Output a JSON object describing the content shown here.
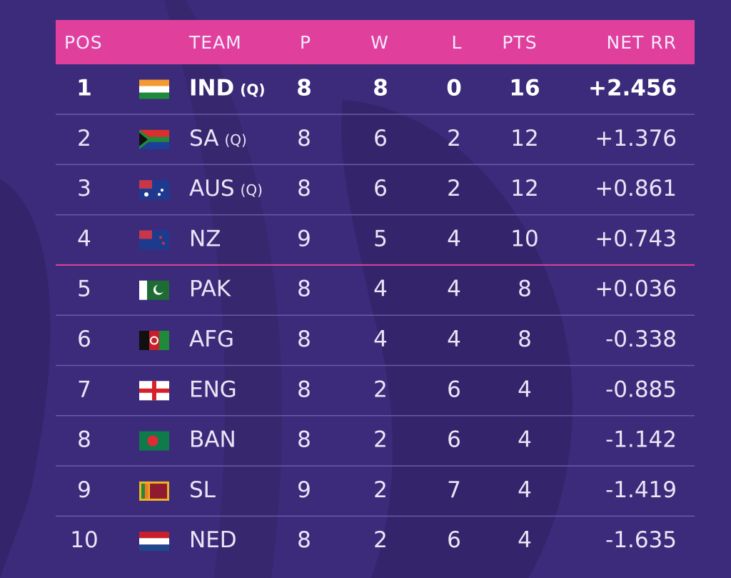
{
  "table": {
    "header": [
      "POS",
      "TEAM",
      "P",
      "W",
      "L",
      "PTS",
      "NET RR"
    ],
    "rows": [
      {
        "pos": "1",
        "team": "IND",
        "q": "(Q)",
        "p": "8",
        "w": "8",
        "l": "0",
        "pts": "16",
        "nrr": "+2.456"
      },
      {
        "pos": "2",
        "team": "SA",
        "q": "(Q)",
        "p": "8",
        "w": "6",
        "l": "2",
        "pts": "12",
        "nrr": "+1.376"
      },
      {
        "pos": "3",
        "team": "AUS",
        "q": "(Q)",
        "p": "8",
        "w": "6",
        "l": "2",
        "pts": "12",
        "nrr": "+0.861"
      },
      {
        "pos": "4",
        "team": "NZ",
        "p": "9",
        "w": "5",
        "l": "4",
        "pts": "10",
        "nrr": "+0.743"
      },
      {
        "pos": "5",
        "team": "PAK",
        "p": "8",
        "w": "4",
        "l": "4",
        "pts": "8",
        "nrr": "+0.036"
      },
      {
        "pos": "6",
        "team": "AFG",
        "p": "8",
        "w": "4",
        "l": "4",
        "pts": "8",
        "nrr": "-0.338"
      },
      {
        "pos": "7",
        "team": "ENG",
        "p": "8",
        "w": "2",
        "l": "6",
        "pts": "4",
        "nrr": "-0.885"
      },
      {
        "pos": "8",
        "team": "BAN",
        "p": "8",
        "w": "2",
        "l": "6",
        "pts": "4",
        "nrr": "-1.142"
      },
      {
        "pos": "9",
        "team": "SL",
        "p": "9",
        "w": "2",
        "l": "7",
        "pts": "4",
        "nrr": "-1.419"
      },
      {
        "pos": "10",
        "team": "NED",
        "p": "8",
        "w": "2",
        "l": "6",
        "pts": "4",
        "nrr": "-1.635"
      }
    ]
  }
}
